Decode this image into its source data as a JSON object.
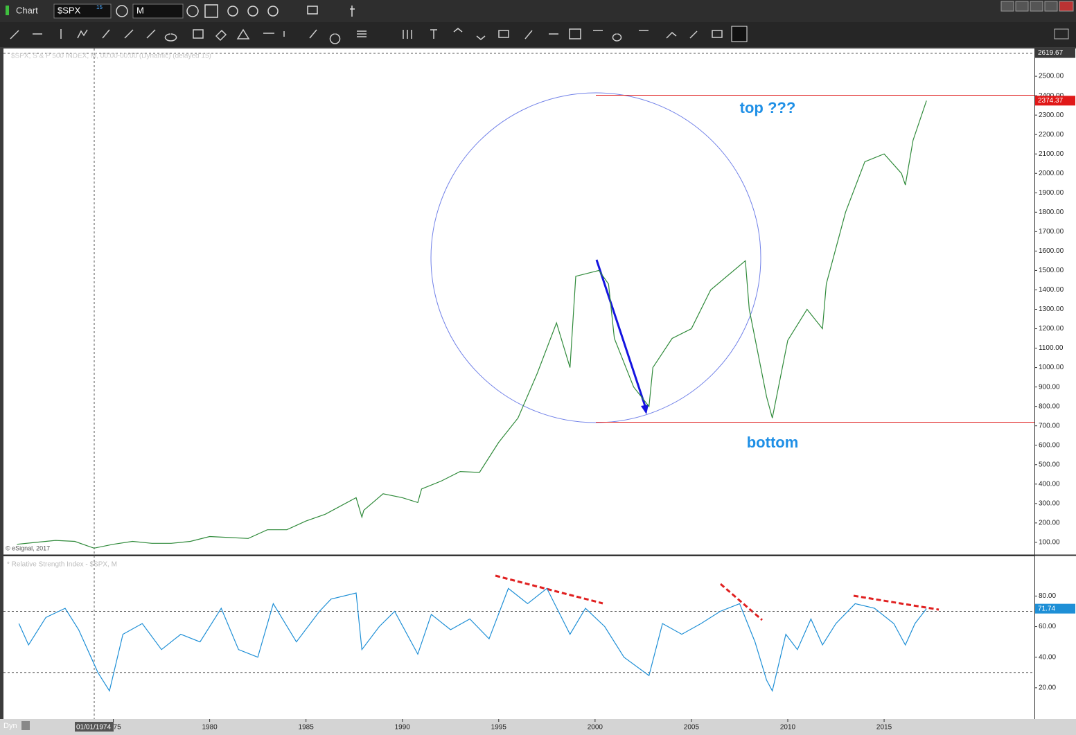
{
  "ui": {
    "window_title": "Chart",
    "symbol": "$SPX",
    "symbol_badge": "15",
    "interval": "M",
    "status": "Dyn",
    "cursor_date": "01/01/1974"
  },
  "chart_data": [
    {
      "type": "line",
      "title": "$SPX, S & P 500 INDEX, M, 00:00-00:00 (Dynamic) (delayed 15)",
      "source": "© eSignal, 2017",
      "annotations": [
        "top ???",
        "bottom"
      ],
      "x": [
        1970,
        1971,
        1972,
        1973,
        1974,
        1975,
        1976,
        1977,
        1978,
        1979,
        1980,
        1981,
        1982,
        1983,
        1984,
        1985,
        1986,
        1987.6,
        1987.9,
        1988,
        1989,
        1990,
        1990.8,
        1991,
        1992,
        1993,
        1994,
        1995,
        1996,
        1997,
        1998,
        1998.7,
        1999,
        2000.2,
        2000.7,
        2001,
        2002,
        2002.8,
        2003,
        2004,
        2005,
        2006,
        2007.8,
        2008,
        2008.9,
        2009.2,
        2010,
        2011,
        2011.8,
        2012,
        2013,
        2014,
        2015,
        2015.9,
        2016.1,
        2016.5,
        2017.2
      ],
      "values": [
        90,
        100,
        110,
        105,
        70,
        90,
        105,
        95,
        95,
        105,
        130,
        125,
        120,
        165,
        165,
        210,
        245,
        330,
        230,
        265,
        350,
        330,
        305,
        375,
        415,
        465,
        460,
        615,
        740,
        970,
        1230,
        1000,
        1470,
        1500,
        1430,
        1150,
        900,
        800,
        1000,
        1150,
        1200,
        1400,
        1550,
        1300,
        850,
        740,
        1140,
        1300,
        1200,
        1430,
        1800,
        2060,
        2100,
        2000,
        1940,
        2170,
        2374.37
      ],
      "color": "#2f8a3a",
      "xlim": [
        1969.3,
        2022.8
      ],
      "ylim": [
        39,
        2643
      ],
      "yticks": [
        {
          "value": 100,
          "label": "100.00"
        },
        {
          "value": 200,
          "label": "200.00"
        },
        {
          "value": 300,
          "label": "300.00"
        },
        {
          "value": 400,
          "label": "400.00"
        },
        {
          "value": 500,
          "label": "500.00"
        },
        {
          "value": 600,
          "label": "600.00"
        },
        {
          "value": 700,
          "label": "700.00"
        },
        {
          "value": 800,
          "label": "800.00"
        },
        {
          "value": 900,
          "label": "900.00"
        },
        {
          "value": 1000,
          "label": "1000.00"
        },
        {
          "value": 1100,
          "label": "1100.00"
        },
        {
          "value": 1200,
          "label": "1200.00"
        },
        {
          "value": 1300,
          "label": "1300.00"
        },
        {
          "value": 1400,
          "label": "1400.00"
        },
        {
          "value": 1500,
          "label": "1500.00"
        },
        {
          "value": 1600,
          "label": "1600.00"
        },
        {
          "value": 1700,
          "label": "1700.00"
        },
        {
          "value": 1800,
          "label": "1800.00"
        },
        {
          "value": 1900,
          "label": "1900.00"
        },
        {
          "value": 2000,
          "label": "2000.00"
        },
        {
          "value": 2100,
          "label": "2100.00"
        },
        {
          "value": 2200,
          "label": "2200.00"
        },
        {
          "value": 2300,
          "label": "2300.00"
        },
        {
          "value": 2400,
          "label": "2400.00"
        },
        {
          "value": 2500,
          "label": "2500.00"
        }
      ],
      "last_value": 2374.37,
      "crosshair_value": 2619.67
    },
    {
      "type": "line",
      "title": "* Relative Strength Index - $SPX, M",
      "x": [
        1970.1,
        1970.6,
        1971.5,
        1972.5,
        1973.2,
        1974.2,
        1974.8,
        1975.5,
        1976.5,
        1977.5,
        1978.5,
        1979.5,
        1980.6,
        1981.5,
        1982.5,
        1983.3,
        1984.5,
        1985.7,
        1986.3,
        1987.6,
        1987.9,
        1988.8,
        1989.6,
        1990.8,
        1991.5,
        1992.5,
        1993.5,
        1994.5,
        1995.5,
        1996.5,
        1997.5,
        1998.7,
        1999.5,
        2000.5,
        2001.5,
        2002.8,
        2003.5,
        2004.5,
        2005.5,
        2006.5,
        2007.5,
        2008.3,
        2008.9,
        2009.2,
        2009.9,
        2010.5,
        2011.2,
        2011.8,
        2012.5,
        2013.5,
        2014.5,
        2015.5,
        2016.1,
        2016.6,
        2017.2
      ],
      "values": [
        62,
        48,
        66,
        72,
        58,
        30,
        18,
        55,
        62,
        45,
        55,
        50,
        72,
        45,
        40,
        75,
        50,
        70,
        78,
        82,
        45,
        60,
        70,
        42,
        68,
        58,
        65,
        52,
        85,
        75,
        85,
        55,
        72,
        60,
        40,
        28,
        62,
        55,
        62,
        70,
        75,
        50,
        25,
        18,
        55,
        45,
        65,
        48,
        62,
        75,
        72,
        62,
        48,
        62,
        71.74
      ],
      "color": "#1e8fd6",
      "xlim": [
        1969.3,
        2022.8
      ],
      "ylim": [
        0,
        106
      ],
      "yticks": [
        {
          "value": 20,
          "label": "20.00"
        },
        {
          "value": 40,
          "label": "40.00"
        },
        {
          "value": 60,
          "label": "60.00"
        },
        {
          "value": 80,
          "label": "80.00"
        }
      ],
      "hlines": [
        30,
        70
      ],
      "last_value": 71.74,
      "xticks": [
        1975,
        1980,
        1985,
        1990,
        1995,
        2000,
        2005,
        2010,
        2015
      ]
    }
  ]
}
